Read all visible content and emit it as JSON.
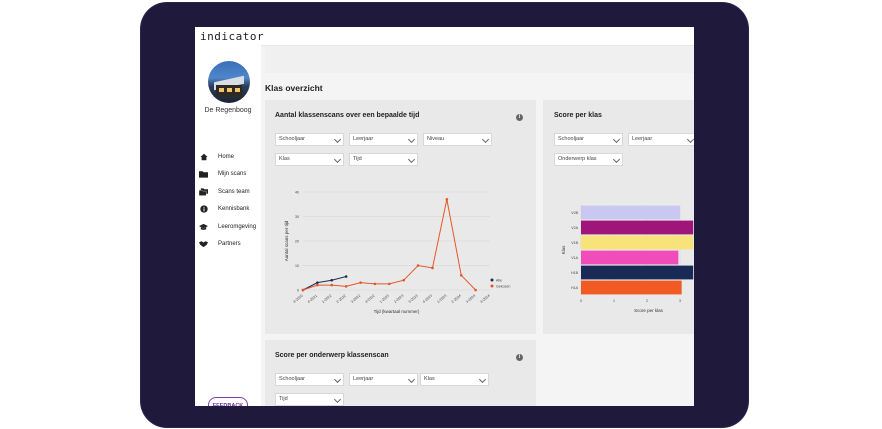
{
  "app": {
    "brand": "indicator",
    "school_name": "De Regenboog"
  },
  "nav": [
    {
      "label": "Home",
      "icon": "home-icon"
    },
    {
      "label": "Mijn scans",
      "icon": "folder-icon"
    },
    {
      "label": "Scans team",
      "icon": "folders-icon"
    },
    {
      "label": "Kennisbank",
      "icon": "info-circle-icon"
    },
    {
      "label": "Leeromgeving",
      "icon": "graduation-cap-icon"
    },
    {
      "label": "Partners",
      "icon": "handshake-icon"
    }
  ],
  "feedback_label": "FEEDBACK",
  "page_title": "Klas overzicht",
  "card1": {
    "title": "Aantal klassenscans over een bepaalde tijd",
    "filters": [
      "Schooljaar",
      "Leerjaar",
      "Niveau",
      "Klas",
      "Tijd"
    ]
  },
  "card2": {
    "title": "Score per klas",
    "filters": [
      "Schooljaar",
      "Leerjaar",
      "Onderwerp klas"
    ]
  },
  "card3": {
    "title": "Score per onderwerp klassenscan",
    "filters": [
      "Schooljaar",
      "Leerjaar",
      "Klas",
      "Tijd"
    ]
  },
  "chart_data": [
    {
      "type": "line",
      "xlabel": "Tijd (kwartaal nummer)",
      "ylabel": "Aantal scans per tijd",
      "x": [
        "4-2020",
        "4-2021",
        "1-2022",
        "2-2022",
        "3-2022",
        "4-2022",
        "1-2023",
        "2-2023",
        "3-2023",
        "4-2023",
        "1-2024",
        "2-2024",
        "3-2024",
        "4-2024"
      ],
      "ylim": [
        0,
        40
      ],
      "yticks": [
        0,
        10,
        20,
        30,
        40
      ],
      "legend": "bottom-right",
      "series": [
        {
          "name": "Alle",
          "color": "#1e2d4f",
          "values": [
            0,
            3,
            4,
            5.5,
            null,
            null,
            null,
            null,
            null,
            null,
            null,
            null,
            null,
            null
          ]
        },
        {
          "name": "Gekozen",
          "color": "#e2572a",
          "values": [
            0,
            2,
            2,
            1.5,
            3,
            2.5,
            2.5,
            4,
            10,
            9,
            37,
            6,
            0,
            null
          ]
        }
      ]
    },
    {
      "type": "bar",
      "orientation": "horizontal",
      "xlabel": "Score per klas",
      "ylabel": "Klas",
      "categories": [
        "V2B",
        "V2A",
        "V1B",
        "V1A",
        "H1B",
        "H1A"
      ],
      "xlim": [
        0,
        3
      ],
      "xticks": [
        0,
        1,
        2,
        3
      ],
      "values": [
        3.0,
        3.4,
        3.4,
        2.95,
        3.4,
        3.05
      ],
      "colors": [
        "#c8c8f2",
        "#a0157a",
        "#f7e37a",
        "#f04dbb",
        "#1a2a56",
        "#f15a22"
      ]
    }
  ]
}
